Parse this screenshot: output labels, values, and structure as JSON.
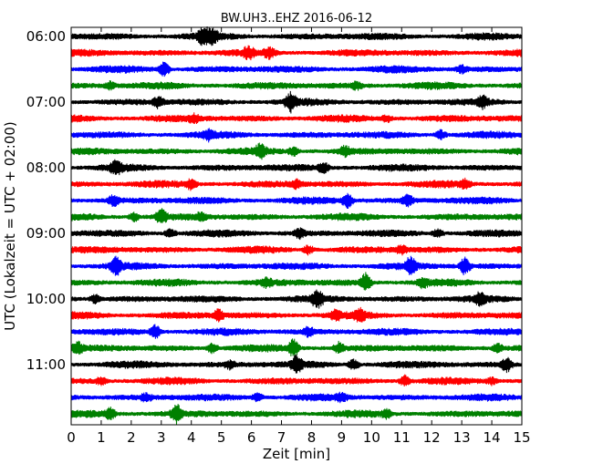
{
  "chart_data": {
    "type": "line",
    "title": "BW.UH3..EHZ 2016-06-12",
    "xlabel": "Zeit  [min]",
    "ylabel": "UTC (Lokalzeit = UTC + 02:00)",
    "xlim": [
      0,
      15
    ],
    "x_ticks": [
      "0",
      "1",
      "2",
      "3",
      "4",
      "5",
      "6",
      "7",
      "8",
      "9",
      "10",
      "11",
      "12",
      "13",
      "14",
      "15"
    ],
    "y_tick_labels": [
      "06:00",
      "07:00",
      "08:00",
      "09:00",
      "10:00",
      "11:00"
    ],
    "trace_interval_min": 15,
    "series_colors": [
      "#000000",
      "#ff0000",
      "#0000ff",
      "#008000"
    ],
    "traces": [
      {
        "start": "06:00",
        "events": [
          [
            4.4,
            1.0
          ],
          [
            4.7,
            0.8
          ]
        ]
      },
      {
        "start": "06:15",
        "events": [
          [
            5.9,
            0.6
          ],
          [
            6.6,
            0.5
          ]
        ]
      },
      {
        "start": "06:30",
        "events": [
          [
            3.1,
            0.9
          ],
          [
            13.0,
            0.4
          ]
        ]
      },
      {
        "start": "06:45",
        "events": [
          [
            1.3,
            0.4
          ],
          [
            9.5,
            0.4
          ]
        ]
      },
      {
        "start": "07:00",
        "events": [
          [
            2.9,
            0.6
          ],
          [
            7.3,
            1.0
          ],
          [
            13.7,
            0.6
          ]
        ]
      },
      {
        "start": "07:15",
        "events": [
          [
            4.1,
            0.4
          ],
          [
            10.5,
            0.4
          ]
        ]
      },
      {
        "start": "07:30",
        "events": [
          [
            4.6,
            0.5
          ],
          [
            12.3,
            0.5
          ]
        ]
      },
      {
        "start": "07:45",
        "events": [
          [
            6.3,
            0.7
          ],
          [
            7.4,
            0.5
          ],
          [
            9.1,
            0.5
          ]
        ]
      },
      {
        "start": "08:00",
        "events": [
          [
            1.5,
            0.7
          ],
          [
            8.4,
            0.6
          ]
        ]
      },
      {
        "start": "08:15",
        "events": [
          [
            4.0,
            0.6
          ],
          [
            7.5,
            0.5
          ],
          [
            13.1,
            0.5
          ]
        ]
      },
      {
        "start": "08:30",
        "events": [
          [
            1.4,
            0.6
          ],
          [
            9.2,
            0.8
          ],
          [
            11.2,
            0.6
          ]
        ]
      },
      {
        "start": "08:45",
        "events": [
          [
            2.1,
            0.5
          ],
          [
            3.0,
            0.8
          ],
          [
            4.3,
            0.4
          ]
        ]
      },
      {
        "start": "09:00",
        "events": [
          [
            3.3,
            0.5
          ],
          [
            7.6,
            0.5
          ],
          [
            12.2,
            0.5
          ]
        ]
      },
      {
        "start": "09:15",
        "events": [
          [
            7.9,
            0.5
          ],
          [
            11.0,
            0.4
          ]
        ]
      },
      {
        "start": "09:30",
        "events": [
          [
            1.5,
            1.0
          ],
          [
            11.3,
            1.0
          ],
          [
            13.1,
            1.0
          ]
        ]
      },
      {
        "start": "09:45",
        "events": [
          [
            6.5,
            0.4
          ],
          [
            9.8,
            1.0
          ],
          [
            11.7,
            0.5
          ]
        ]
      },
      {
        "start": "10:00",
        "events": [
          [
            0.8,
            0.5
          ],
          [
            8.2,
            1.0
          ],
          [
            13.6,
            0.6
          ]
        ]
      },
      {
        "start": "10:15",
        "events": [
          [
            4.9,
            0.6
          ],
          [
            8.8,
            0.5
          ],
          [
            9.6,
            0.7
          ]
        ]
      },
      {
        "start": "10:30",
        "events": [
          [
            2.8,
            0.8
          ],
          [
            7.9,
            0.5
          ]
        ]
      },
      {
        "start": "10:45",
        "events": [
          [
            0.2,
            0.7
          ],
          [
            4.7,
            0.6
          ],
          [
            7.4,
            1.0
          ],
          [
            8.9,
            0.6
          ],
          [
            14.2,
            0.5
          ]
        ]
      },
      {
        "start": "11:00",
        "events": [
          [
            5.3,
            0.4
          ],
          [
            7.5,
            1.0
          ],
          [
            9.4,
            0.6
          ],
          [
            14.5,
            0.8
          ]
        ]
      },
      {
        "start": "11:15",
        "events": [
          [
            1.0,
            0.4
          ],
          [
            11.1,
            0.6
          ],
          [
            14.0,
            0.4
          ]
        ]
      },
      {
        "start": "11:30",
        "events": [
          [
            2.5,
            0.4
          ],
          [
            6.2,
            0.5
          ],
          [
            9.0,
            0.4
          ]
        ]
      },
      {
        "start": "11:45",
        "events": [
          [
            1.3,
            0.6
          ],
          [
            3.5,
            1.0
          ],
          [
            10.5,
            0.4
          ]
        ]
      }
    ]
  }
}
